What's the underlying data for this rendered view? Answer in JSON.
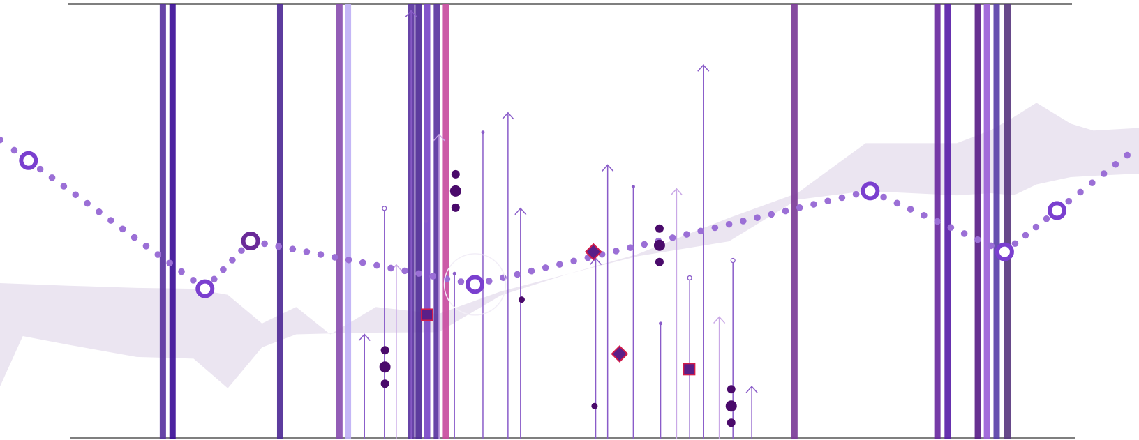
{
  "chart_data": {
    "type": "line",
    "title": "",
    "xlabel": "",
    "ylabel": "",
    "xlim": [
      0,
      1000
    ],
    "ylim": [
      0,
      100
    ],
    "grid": false,
    "colors": {
      "band": "#e7e1ee",
      "dots": "#9b6fd6",
      "ring": "#7a3fcf",
      "stem": "#8a5cc9",
      "stem_light": "#c9a8e6",
      "dark_dot": "#4a0a6b",
      "marker_fill": "#5a1f88",
      "marker_edge": "#d11b4b",
      "axis": "#555555"
    },
    "band": {
      "upper": [
        [
          0,
          35.8
        ],
        [
          60,
          35.2
        ],
        [
          120,
          34.7
        ],
        [
          170,
          34.5
        ],
        [
          200,
          33.1
        ],
        [
          230,
          26.5
        ],
        [
          260,
          30.3
        ],
        [
          290,
          24.0
        ],
        [
          330,
          30.3
        ],
        [
          385,
          28.7
        ],
        [
          440,
          33.9
        ],
        [
          500,
          38.0
        ],
        [
          560,
          42.5
        ],
        [
          640,
          50.8
        ],
        [
          700,
          56.5
        ],
        [
          760,
          68.0
        ],
        [
          840,
          68.0
        ],
        [
          870,
          71.0
        ],
        [
          890,
          74.0
        ],
        [
          910,
          77.3
        ],
        [
          940,
          72.5
        ],
        [
          960,
          70.9
        ],
        [
          1000,
          71.5
        ]
      ],
      "lower": [
        [
          0,
          12.0
        ],
        [
          20,
          23.6
        ],
        [
          60,
          21.6
        ],
        [
          120,
          18.8
        ],
        [
          170,
          18.4
        ],
        [
          200,
          11.6
        ],
        [
          230,
          21.0
        ],
        [
          260,
          24.0
        ],
        [
          290,
          24.2
        ],
        [
          330,
          24.4
        ],
        [
          385,
          24.5
        ],
        [
          440,
          33.0
        ],
        [
          500,
          38.0
        ],
        [
          560,
          42.0
        ],
        [
          640,
          45.4
        ],
        [
          700,
          55.0
        ],
        [
          760,
          57.0
        ],
        [
          840,
          56.0
        ],
        [
          870,
          56.5
        ],
        [
          890,
          56.0
        ],
        [
          910,
          58.5
        ],
        [
          940,
          60.2
        ],
        [
          960,
          60.5
        ],
        [
          1000,
          61.0
        ]
      ]
    },
    "line": {
      "x": [
        25,
        180,
        220,
        417,
        764,
        882,
        928
      ],
      "y": [
        64,
        34.5,
        45.5,
        35.5,
        57,
        43,
        52.5
      ]
    },
    "vbars": [
      {
        "x": 143,
        "c": "#5a34a0"
      },
      {
        "x": 151.5,
        "c": "#3d1098"
      },
      {
        "x": 246,
        "c": "#4f2b96"
      },
      {
        "x": 298,
        "c": "#8a4fb0"
      },
      {
        "x": 305.5,
        "c": "#bfb0f5"
      },
      {
        "x": 361,
        "c": "#5a34a0"
      },
      {
        "x": 367.5,
        "c": "#4f2b96"
      },
      {
        "x": 375,
        "c": "#7a48c8"
      },
      {
        "x": 383.5,
        "c": "#5a34a0"
      },
      {
        "x": 391.5,
        "c": "#c84ca0"
      },
      {
        "x": 697.5,
        "c": "#7c3c98"
      },
      {
        "x": 823,
        "c": "#6a2aa0"
      },
      {
        "x": 832,
        "c": "#5a20a8"
      },
      {
        "x": 858.5,
        "c": "#5a1f88"
      },
      {
        "x": 866.5,
        "c": "#9b5fd8"
      },
      {
        "x": 875,
        "c": "#5a40a8"
      },
      {
        "x": 884.5,
        "c": "#5a3a80"
      }
    ],
    "stems": [
      {
        "x": 320,
        "top": 24,
        "head": "arrow",
        "c": "#8a5cc9"
      },
      {
        "x": 337.5,
        "top": 53,
        "head": "circle",
        "c": "#8a5cc9"
      },
      {
        "x": 348,
        "top": 40,
        "head": "arrow",
        "c": "#c9a8e6"
      },
      {
        "x": 361,
        "top": 98.5,
        "head": "arrow",
        "c": "#8a5cc9"
      },
      {
        "x": 374,
        "top": 50,
        "head": "dot",
        "c": "#8a5cc9"
      },
      {
        "x": 385.5,
        "top": 70,
        "head": "arrow",
        "c": "#c9a8e6"
      },
      {
        "x": 399,
        "top": 38,
        "head": "dot",
        "c": "#8a5cc9"
      },
      {
        "x": 424,
        "top": 70.5,
        "head": "dot",
        "c": "#8a5cc9"
      },
      {
        "x": 446,
        "top": 75,
        "head": "arrow",
        "c": "#8a5cc9"
      },
      {
        "x": 457,
        "top": 53,
        "head": "arrow",
        "c": "#8a5cc9"
      },
      {
        "x": 523,
        "top": 41.5,
        "head": "arrow",
        "c": "#8a5cc9"
      },
      {
        "x": 533.5,
        "top": 63,
        "head": "arrow",
        "c": "#8a5cc9"
      },
      {
        "x": 556,
        "top": 58,
        "head": "dot",
        "c": "#8a5cc9"
      },
      {
        "x": 580,
        "top": 26.5,
        "head": "dot",
        "c": "#8a5cc9"
      },
      {
        "x": 594,
        "top": 57.5,
        "head": "arrow",
        "c": "#c9a8e6"
      },
      {
        "x": 605.5,
        "top": 37,
        "head": "circle",
        "c": "#8a5cc9"
      },
      {
        "x": 617.5,
        "top": 86,
        "head": "arrow",
        "c": "#8a5cc9"
      },
      {
        "x": 631.5,
        "top": 28,
        "head": "arrow",
        "c": "#c9a8e6"
      },
      {
        "x": 643.5,
        "top": 41,
        "head": "circle",
        "c": "#8a5cc9"
      },
      {
        "x": 660,
        "top": 12,
        "head": "arrow",
        "c": "#8a5cc9"
      }
    ],
    "trios": [
      {
        "x": 338,
        "y": 16.5
      },
      {
        "x": 400,
        "y": 57
      },
      {
        "x": 579,
        "y": 44.5
      },
      {
        "x": 642,
        "y": 7.5
      }
    ],
    "singles": [
      {
        "x": 458,
        "y": 32
      },
      {
        "x": 522,
        "y": 7.5
      }
    ],
    "markers": [
      {
        "x": 375,
        "y": 28.5,
        "shape": "square"
      },
      {
        "x": 521,
        "y": 43,
        "shape": "diamond"
      },
      {
        "x": 544,
        "y": 19.5,
        "shape": "diamond"
      },
      {
        "x": 605,
        "y": 16,
        "shape": "square"
      }
    ]
  }
}
